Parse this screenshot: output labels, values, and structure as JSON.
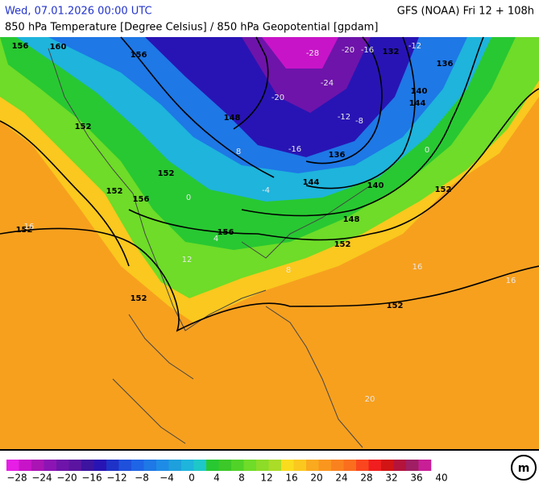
{
  "header": {
    "datetime": "Wed, 07.01.2026 00:00 UTC",
    "model": "GFS (NOAA) Fri 12 + 108h",
    "subtitle": "850 hPa Temperature [Degree Celsius] / 850 hPa Geopotential [gpdam]"
  },
  "map": {
    "geopotential_labels": [
      "160",
      "156",
      "156",
      "152",
      "152",
      "156",
      "152",
      "156",
      "152",
      "152",
      "148",
      "144",
      "140",
      "136",
      "132",
      "136",
      "140",
      "144",
      "148",
      "152",
      "152",
      "152"
    ],
    "temperature_labels": [
      "-28",
      "-24",
      "-20",
      "-20",
      "-16",
      "-16",
      "-12",
      "-12",
      "-8",
      "-4",
      "0",
      "0",
      "4",
      "8",
      "8",
      "12",
      "16",
      "16",
      "16",
      "20"
    ]
  },
  "colorbar": {
    "labels": [
      "−28",
      "−24",
      "−20",
      "−16",
      "−12",
      "−8",
      "−4",
      "0",
      "4",
      "8",
      "12",
      "16",
      "20",
      "24",
      "28",
      "32",
      "36",
      "40"
    ],
    "colors": [
      "#e61ee6",
      "#c814c8",
      "#aa14b4",
      "#8c14b4",
      "#6e14aa",
      "#5a14a0",
      "#3c14a0",
      "#2814b4",
      "#1e32c8",
      "#1e50dc",
      "#1e64e6",
      "#1e78e6",
      "#1e8ce6",
      "#1ea0dc",
      "#1eb4dc",
      "#1ec8c8",
      "#28c832",
      "#3cc828",
      "#50d228",
      "#6edc28",
      "#8cdc28",
      "#aadc28",
      "#fadc1e",
      "#fac81e",
      "#faaa1e",
      "#fa961e",
      "#fa821e",
      "#fa6e1e",
      "#fa461e",
      "#f01e1e",
      "#d21414",
      "#b4143c",
      "#a01e64",
      "#c81e96"
    ]
  }
}
